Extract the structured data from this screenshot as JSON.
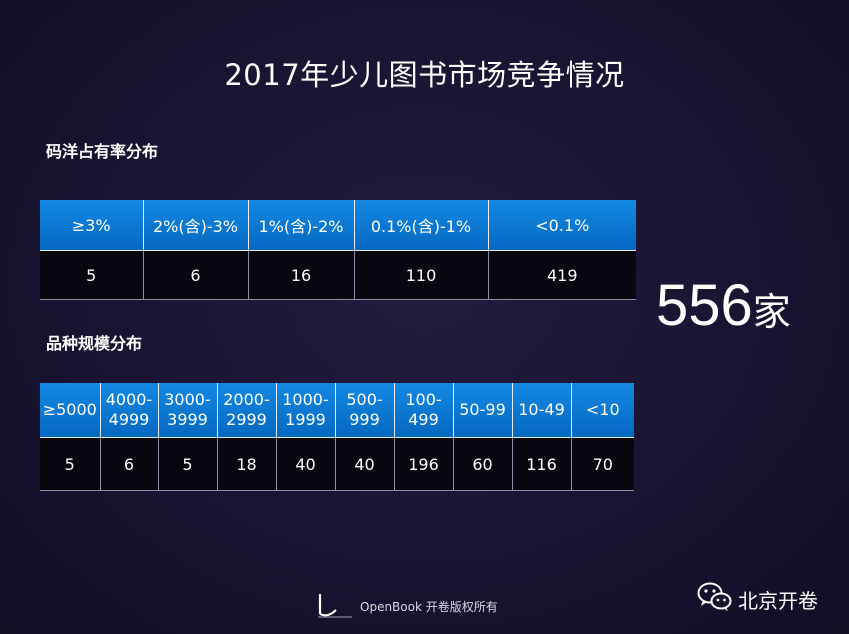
{
  "title": "2017年少儿图书市场竞争情况",
  "share_section": {
    "label": "码洋占有率分布",
    "headers": [
      "≥3%",
      "2%(含)-3%",
      "1%(含)-2%",
      "0.1%(含)-1%",
      "<0.1%"
    ],
    "values": [
      "5",
      "6",
      "16",
      "110",
      "419"
    ]
  },
  "variety_section": {
    "label": "品种规模分布",
    "headers": [
      "≥5000",
      "4000-\n4999",
      "3000-\n3999",
      "2000-\n2999",
      "1000-\n1999",
      "500-\n999",
      "100-\n499",
      "50-99",
      "10-49",
      "<10"
    ],
    "values": [
      "5",
      "6",
      "5",
      "18",
      "40",
      "40",
      "196",
      "60",
      "116",
      "70"
    ]
  },
  "total": {
    "number": "556",
    "unit": "家"
  },
  "footer": {
    "text": "OpenBook 开卷版权所有",
    "logo_icon": "openbook-logo-icon"
  },
  "wechat": {
    "name": "北京开卷",
    "icon": "wechat-icon"
  },
  "colors": {
    "header_blue": "#0a77d0",
    "background": "#1a1530"
  }
}
